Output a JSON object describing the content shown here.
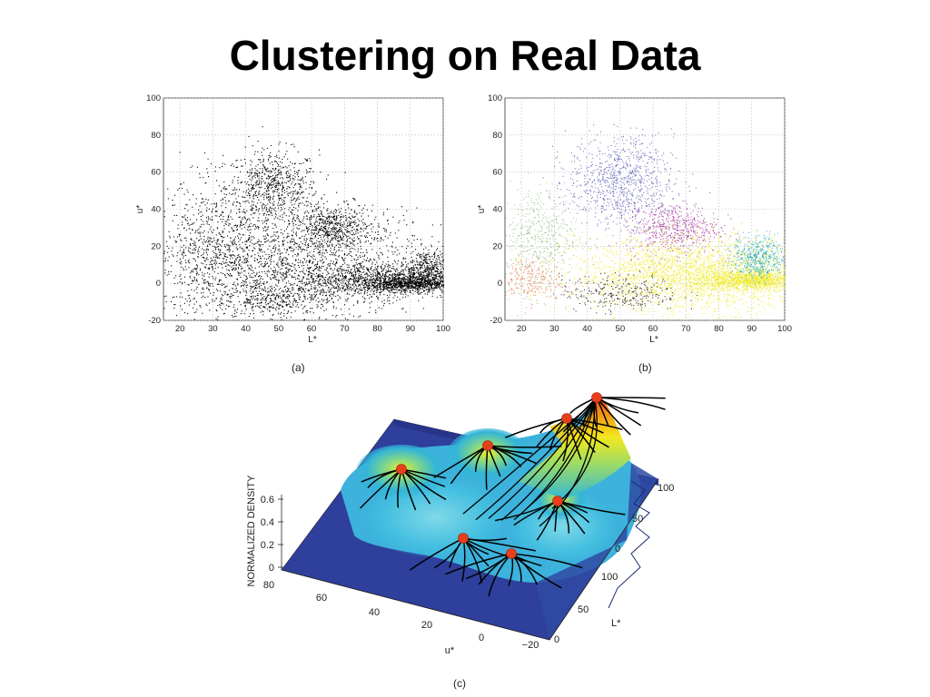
{
  "slide": {
    "title": "Clustering on Real Data"
  },
  "chart_data": [
    {
      "panel": "(a)",
      "type": "scatter",
      "xlabel": "L*",
      "ylabel": "u*",
      "xlim": [
        15,
        100
      ],
      "ylim": [
        -20,
        100
      ],
      "xticks": [
        20,
        30,
        40,
        50,
        60,
        70,
        80,
        90,
        100
      ],
      "yticks": [
        -20,
        0,
        20,
        40,
        60,
        80,
        100
      ],
      "grid": true,
      "series": [
        {
          "color": "#000000",
          "points": "L*–u* colour samples: dense clusters near (48,52), (65,30), (95,8), band (70–100, 0)"
        }
      ]
    },
    {
      "panel": "(b)",
      "type": "scatter",
      "xlabel": "L*",
      "ylabel": "u*",
      "xlim": [
        15,
        100
      ],
      "ylim": [
        -20,
        100
      ],
      "xticks": [
        20,
        30,
        40,
        50,
        60,
        70,
        80,
        90,
        100
      ],
      "yticks": [
        -20,
        0,
        20,
        40,
        60,
        80,
        100
      ],
      "grid": true,
      "clusters": [
        {
          "color": "#5a5ab4",
          "center": [
            50,
            55
          ],
          "spread": [
            8,
            12
          ]
        },
        {
          "color": "#a0329b",
          "center": [
            66,
            30
          ],
          "spread": [
            7,
            7
          ]
        },
        {
          "color": "#f0eb28",
          "center": [
            72,
            5
          ],
          "spread": [
            18,
            10
          ]
        },
        {
          "color": "#28aab9",
          "center": [
            92,
            14
          ],
          "spread": [
            4,
            6
          ]
        },
        {
          "color": "#8cbe7d",
          "center": [
            25,
            25
          ],
          "spread": [
            6,
            14
          ]
        },
        {
          "color": "#e67846",
          "center": [
            22,
            2
          ],
          "spread": [
            5,
            6
          ]
        },
        {
          "color": "#141414",
          "center": [
            50,
            -5
          ],
          "spread": [
            9,
            5
          ]
        }
      ]
    },
    {
      "panel": "(c)",
      "type": "surface",
      "zlabel": "NORMALIZED DENSITY",
      "xlabel": "u*",
      "ylabel": "L*",
      "zticks": [
        "0",
        "0.2",
        "0.4",
        "0.6"
      ],
      "uticks": [
        "80",
        "60",
        "40",
        "20",
        "0",
        "−20"
      ],
      "lticks": [
        "0",
        "50",
        "100"
      ],
      "rticks": [
        "100",
        "50",
        "0"
      ],
      "modes": 7,
      "mode_color": "#e8401c"
    }
  ],
  "captions": {
    "a": "(a)",
    "b": "(b)",
    "c": "(c)"
  }
}
